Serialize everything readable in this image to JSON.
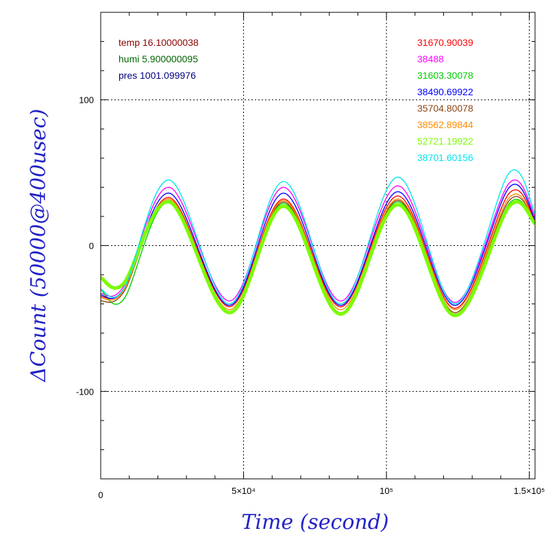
{
  "chart_data": {
    "type": "line",
    "xlabel": "Time (second)",
    "ylabel": "ΔCount (50000@400usec)",
    "xlim": [
      0,
      152000
    ],
    "ylim": [
      -160,
      160
    ],
    "x_ticks": [
      {
        "value": 0,
        "label": "0"
      },
      {
        "value": 50000,
        "label": "5×10⁴"
      },
      {
        "value": 100000,
        "label": "10⁵"
      },
      {
        "value": 150000,
        "label": "1.5×10⁵"
      }
    ],
    "y_ticks": [
      {
        "value": 100,
        "label": "100"
      },
      {
        "value": 0,
        "label": "0"
      },
      {
        "value": -100,
        "label": "-100"
      }
    ],
    "grid": true,
    "env_legend": [
      {
        "name": "temp",
        "value": "16.10000038",
        "color": "#8b0000"
      },
      {
        "name": "humi",
        "value": "5.900000095",
        "color": "#006400"
      },
      {
        "name": "pres",
        "value": "1001.099976",
        "color": "#000080"
      }
    ],
    "series": [
      {
        "name": "31670.90039",
        "color": "#ff0000",
        "x": [
          0,
          8000,
          24000,
          45000,
          64000,
          84000,
          104000,
          124000,
          143000,
          152000
        ],
        "values": [
          -35,
          -30,
          33,
          -42,
          32,
          -42,
          34,
          -43,
          36,
          17
        ]
      },
      {
        "name": "38488",
        "color": "#ff00ff",
        "x": [
          0,
          8000,
          24000,
          45000,
          64000,
          84000,
          104000,
          124000,
          143000,
          152000
        ],
        "values": [
          -33,
          -28,
          40,
          -38,
          40,
          -38,
          41,
          -39,
          43,
          20
        ]
      },
      {
        "name": "31603.30078",
        "color": "#00cd00",
        "x": [
          0,
          8000,
          24000,
          45000,
          64000,
          84000,
          104000,
          124000,
          143000,
          152000
        ],
        "values": [
          -30,
          -37,
          30,
          -46,
          29,
          -47,
          30,
          -47,
          29,
          15
        ]
      },
      {
        "name": "38490.69922",
        "color": "#0000ff",
        "x": [
          0,
          8000,
          24000,
          45000,
          64000,
          84000,
          104000,
          124000,
          143000,
          152000
        ],
        "values": [
          -34,
          -30,
          36,
          -41,
          36,
          -41,
          37,
          -41,
          40,
          18
        ]
      },
      {
        "name": "35704.80078",
        "color": "#8b4513",
        "x": [
          0,
          8000,
          24000,
          45000,
          64000,
          84000,
          104000,
          124000,
          143000,
          152000
        ],
        "values": [
          -38,
          -32,
          31,
          -46,
          30,
          -46,
          31,
          -46,
          31,
          16
        ]
      },
      {
        "name": "38562.89844",
        "color": "#ff8c00",
        "x": [
          0,
          8000,
          24000,
          45000,
          64000,
          84000,
          104000,
          124000,
          143000,
          152000
        ],
        "values": [
          -36,
          -31,
          32,
          -44,
          31,
          -44,
          32,
          -44,
          33,
          16
        ]
      },
      {
        "name": "52721.19922",
        "color": "#7cfc00",
        "x": [
          0,
          8000,
          24000,
          45000,
          64000,
          84000,
          104000,
          124000,
          143000,
          152000
        ],
        "values": [
          -22,
          -26,
          30,
          -46,
          27,
          -47,
          28,
          -48,
          27,
          15
        ]
      },
      {
        "name": "38701.60156",
        "color": "#00e5ee",
        "x": [
          0,
          8000,
          24000,
          45000,
          64000,
          84000,
          104000,
          124000,
          143000,
          152000
        ],
        "values": [
          -30,
          -30,
          45,
          -40,
          44,
          -40,
          47,
          -40,
          50,
          22
        ]
      }
    ]
  }
}
